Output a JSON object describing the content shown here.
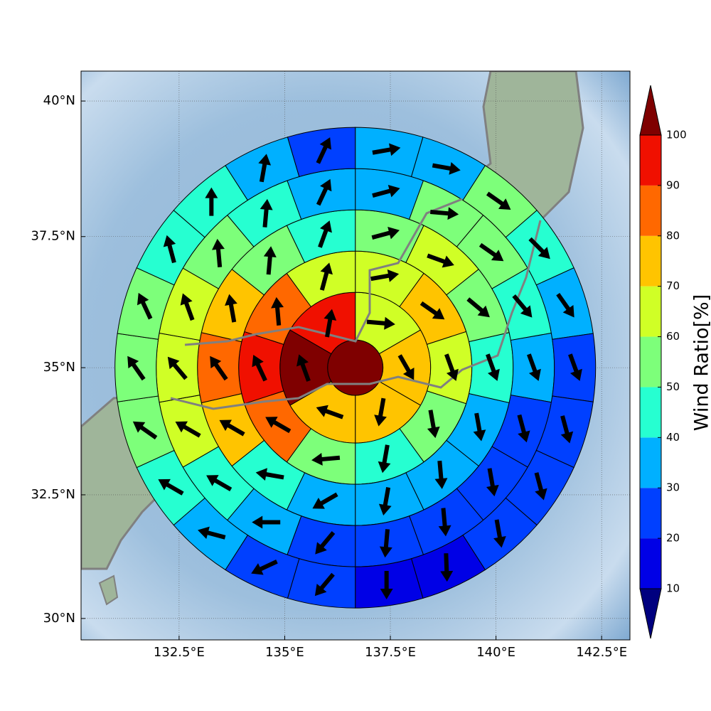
{
  "chart_data": {
    "type": "polar-sector-map",
    "projection": "mercator",
    "xlim": [
      130.18,
      143.17
    ],
    "ylim": [
      29.56,
      40.54
    ],
    "xticks": [
      {
        "value": 132.5,
        "label": "132.5°E"
      },
      {
        "value": 135,
        "label": "135°E"
      },
      {
        "value": 137.5,
        "label": "137.5°E"
      },
      {
        "value": 140,
        "label": "140°E"
      },
      {
        "value": 142.5,
        "label": "142.5°E"
      }
    ],
    "yticks": [
      {
        "value": 30,
        "label": "30°N"
      },
      {
        "value": 32.5,
        "label": "32.5°N"
      },
      {
        "value": 35,
        "label": "35°N"
      },
      {
        "value": 37.5,
        "label": "37.5°N"
      },
      {
        "value": 40,
        "label": "40°N"
      }
    ],
    "grid": true,
    "center": {
      "lon": 136.67,
      "lat": 35.0
    },
    "rings": [
      {
        "values": [
          100
        ]
      },
      {
        "values": [
          65,
          75,
          75,
          75,
          100,
          95
        ],
        "directions": [
          95,
          150,
          190,
          290,
          340,
          10
        ]
      },
      {
        "values": [
          65,
          75,
          65,
          55,
          45,
          55,
          85,
          95,
          85,
          65
        ],
        "directions": [
          80,
          125,
          160,
          170,
          190,
          265,
          300,
          335,
          355,
          15
        ]
      },
      {
        "values": [
          55,
          65,
          55,
          45,
          35,
          35,
          35,
          35,
          45,
          75,
          85,
          75,
          55,
          45
        ],
        "directions": [
          75,
          110,
          130,
          160,
          170,
          175,
          190,
          240,
          280,
          300,
          325,
          350,
          5,
          20
        ]
      },
      {
        "values": [
          35,
          55,
          55,
          45,
          35,
          25,
          25,
          25,
          25,
          25,
          35,
          45,
          65,
          65,
          65,
          55,
          45,
          35
        ],
        "directions": [
          75,
          95,
          125,
          140,
          160,
          165,
          170,
          175,
          185,
          220,
          270,
          300,
          300,
          320,
          340,
          355,
          5,
          25
        ]
      },
      {
        "values": [
          35,
          35,
          55,
          45,
          35,
          25,
          25,
          25,
          25,
          15,
          15,
          25,
          25,
          35,
          45,
          55,
          55,
          55,
          45,
          45,
          35,
          25
        ],
        "directions": [
          80,
          100,
          125,
          135,
          145,
          160,
          165,
          165,
          170,
          178,
          180,
          220,
          245,
          285,
          300,
          305,
          325,
          335,
          345,
          0,
          10,
          25
        ]
      }
    ],
    "colorbar": {
      "label": "Wind Ratio[%]",
      "levels": [
        10,
        20,
        30,
        40,
        50,
        60,
        70,
        80,
        90,
        100
      ],
      "colors": [
        "#0000e6",
        "#0040ff",
        "#00b0ff",
        "#26ffd1",
        "#7dff7a",
        "#d0ff26",
        "#ffc400",
        "#ff6800",
        "#f01000"
      ],
      "under_color": "#00007f",
      "over_color": "#7f0000"
    },
    "arrow_color": "#000000"
  }
}
